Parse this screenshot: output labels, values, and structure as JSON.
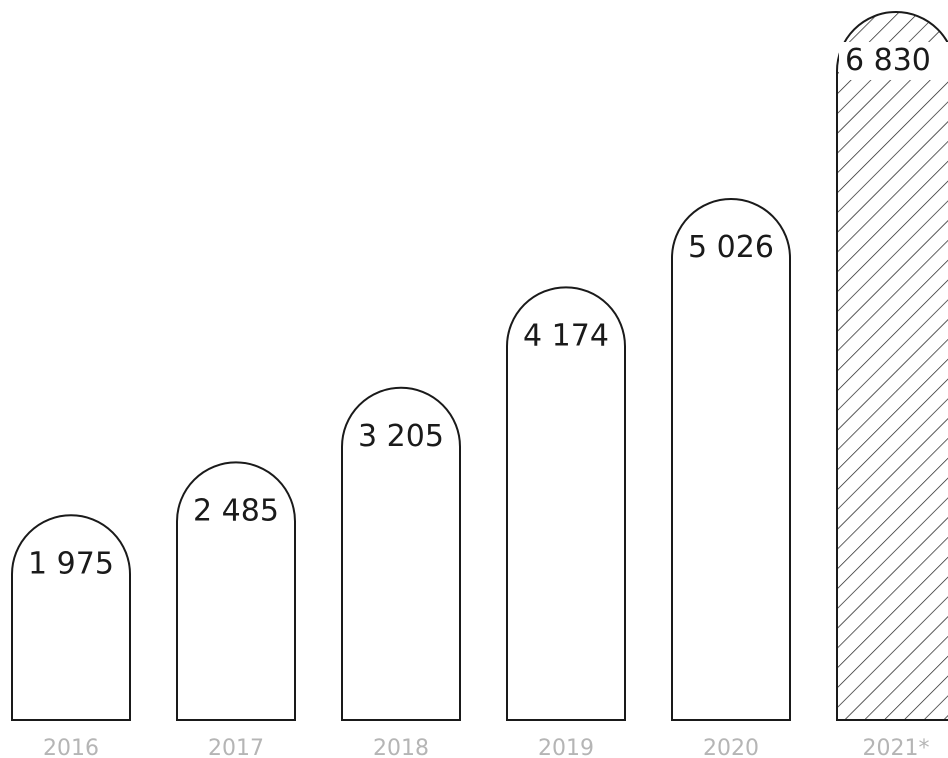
{
  "chart_data": {
    "type": "bar",
    "categories": [
      "2016",
      "2017",
      "2018",
      "2019",
      "2020",
      "2021*"
    ],
    "values": [
      1975,
      2485,
      3205,
      4174,
      5026,
      6830
    ],
    "value_labels": [
      "1 975",
      "2 485",
      "3 205",
      "4 174",
      "5 026",
      "6 830"
    ],
    "title": "",
    "xlabel": "",
    "ylabel": "",
    "ylim": [
      0,
      6830
    ],
    "grid": false,
    "hatched_categories": [
      "2021*"
    ],
    "colors": {
      "outline": "#1a1a1a",
      "fill": "#ffffff",
      "category_text": "#b5b5b5",
      "value_text": "#1a1a1a"
    }
  }
}
